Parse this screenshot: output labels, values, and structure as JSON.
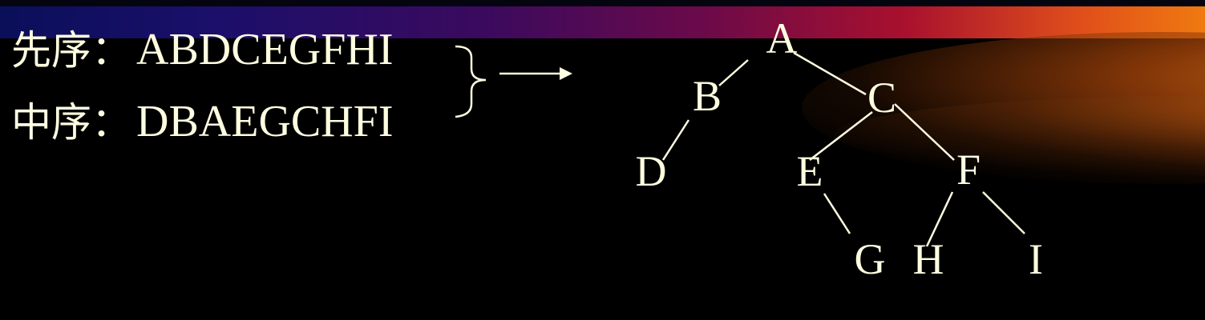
{
  "traversals": [
    {
      "label": "先序：",
      "sequence": "ABDCEGFHI"
    },
    {
      "label": "中序：",
      "sequence": "DBAEGCHFI"
    }
  ],
  "tree": {
    "nodes": [
      "A",
      "B",
      "C",
      "D",
      "E",
      "F",
      "G",
      "H",
      "I"
    ],
    "edges": [
      [
        "A",
        "B"
      ],
      [
        "A",
        "C"
      ],
      [
        "B",
        "D"
      ],
      [
        "C",
        "E"
      ],
      [
        "C",
        "F"
      ],
      [
        "E",
        "G"
      ],
      [
        "F",
        "H"
      ],
      [
        "F",
        "I"
      ]
    ]
  },
  "colors": {
    "background": "#000000",
    "text": "#fffde0"
  },
  "icons": {
    "brace": "right-curly-brace-icon",
    "arrow": "right-arrow-icon"
  }
}
